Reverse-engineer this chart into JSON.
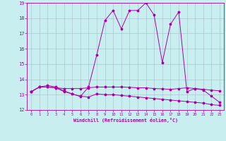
{
  "xlabel": "Windchill (Refroidissement éolien,°C)",
  "background_color": "#c8eef0",
  "grid_color": "#aabbcc",
  "line_color": "#aa00aa",
  "xlim": [
    -0.5,
    23.5
  ],
  "ylim": [
    12,
    19
  ],
  "xticks": [
    0,
    1,
    2,
    3,
    4,
    5,
    6,
    7,
    8,
    9,
    10,
    11,
    12,
    13,
    14,
    15,
    16,
    17,
    18,
    19,
    20,
    21,
    22,
    23
  ],
  "yticks": [
    12,
    13,
    14,
    15,
    16,
    17,
    18,
    19
  ],
  "line1_x": [
    0,
    1,
    2,
    3,
    4,
    5,
    6,
    7,
    8,
    9,
    10,
    11,
    12,
    13,
    14,
    15,
    16,
    17,
    18,
    19,
    20,
    21,
    22,
    23
  ],
  "line1_y": [
    13.2,
    13.5,
    13.6,
    13.5,
    13.25,
    13.05,
    12.9,
    12.85,
    13.05,
    13.0,
    13.0,
    12.95,
    12.9,
    12.85,
    12.8,
    12.75,
    12.7,
    12.65,
    12.6,
    12.55,
    12.5,
    12.45,
    12.35,
    12.3
  ],
  "line2_x": [
    0,
    1,
    2,
    3,
    4,
    5,
    6,
    7,
    8,
    9,
    10,
    11,
    12,
    13,
    14,
    15,
    16,
    17,
    18,
    19,
    20,
    21,
    22,
    23
  ],
  "line2_y": [
    13.2,
    13.5,
    13.5,
    13.45,
    13.4,
    13.4,
    13.4,
    13.45,
    13.5,
    13.5,
    13.5,
    13.5,
    13.48,
    13.45,
    13.45,
    13.4,
    13.38,
    13.35,
    13.4,
    13.45,
    13.4,
    13.35,
    13.3,
    13.25
  ],
  "line3_x": [
    0,
    1,
    2,
    3,
    4,
    5,
    6,
    7,
    8,
    9,
    10,
    11,
    12,
    13,
    14,
    15,
    16,
    17,
    18,
    19,
    20,
    21,
    22,
    23
  ],
  "line3_y": [
    13.2,
    13.5,
    13.5,
    13.45,
    13.2,
    13.05,
    12.88,
    13.5,
    15.6,
    17.85,
    18.5,
    17.3,
    18.5,
    18.5,
    19.0,
    18.2,
    15.1,
    17.6,
    18.4,
    13.2,
    13.4,
    13.3,
    12.9,
    12.5
  ]
}
